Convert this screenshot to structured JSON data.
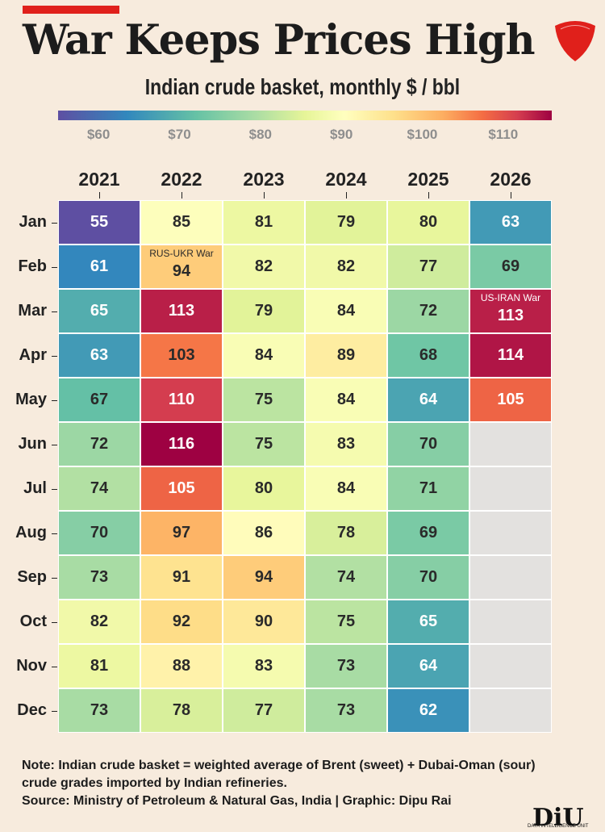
{
  "title": "War Keeps Prices High",
  "subtitle": "Indian crude basket, monthly $ / bbl",
  "logo_text": "INDIA TODAY GROUP",
  "colorbar": {
    "ticks": [
      "$60",
      "$70",
      "$80",
      "$90",
      "$100",
      "$110"
    ],
    "range": [
      55,
      116
    ],
    "colormap": "Spectral_r"
  },
  "notes": {
    "note1": "Note: Indian crude basket = weighted average of Brent (sweet) + Dubai-Oman (sour)",
    "note2": "crude grades imported by Indian refineries.",
    "source": "Source: Ministry of Petroleum & Natural Gas, India | Graphic: Dipu Rai"
  },
  "diu": {
    "logo": "DiU",
    "tagline": "DATA INTELLIGENCE UNIT"
  },
  "chart_data": {
    "type": "heatmap",
    "title": "War Keeps Prices High",
    "subtitle": "Indian crude basket, monthly $ / bbl",
    "x": [
      "2021",
      "2022",
      "2023",
      "2024",
      "2025",
      "2026"
    ],
    "y": [
      "Jan",
      "Feb",
      "Mar",
      "Apr",
      "May",
      "Jun",
      "Jul",
      "Aug",
      "Sep",
      "Oct",
      "Nov",
      "Dec"
    ],
    "values": [
      [
        55,
        85,
        81,
        79,
        80,
        63
      ],
      [
        61,
        94,
        82,
        82,
        77,
        69
      ],
      [
        65,
        113,
        79,
        84,
        72,
        113
      ],
      [
        63,
        103,
        84,
        89,
        68,
        114
      ],
      [
        67,
        110,
        75,
        84,
        64,
        105
      ],
      [
        72,
        116,
        75,
        83,
        70,
        null
      ],
      [
        74,
        105,
        80,
        84,
        71,
        null
      ],
      [
        70,
        97,
        86,
        78,
        69,
        null
      ],
      [
        73,
        91,
        94,
        74,
        70,
        null
      ],
      [
        82,
        92,
        90,
        75,
        65,
        null
      ],
      [
        81,
        88,
        83,
        73,
        64,
        null
      ],
      [
        73,
        78,
        77,
        73,
        62,
        null
      ]
    ],
    "annotations": [
      {
        "text": "RUS-UKR War",
        "month": "Feb",
        "year": "2022"
      },
      {
        "text": "US-IRAN War",
        "month": "Mar",
        "year": "2026"
      }
    ],
    "colorbar_ticks": [
      60,
      70,
      80,
      90,
      100,
      110
    ]
  }
}
